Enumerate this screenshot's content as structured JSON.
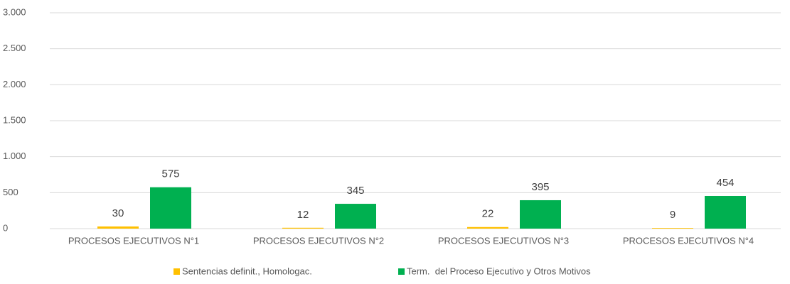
{
  "chart_data": {
    "type": "bar",
    "categories": [
      "PROCESOS EJECUTIVOS N°1",
      "PROCESOS EJECUTIVOS N°2",
      "PROCESOS EJECUTIVOS N°3",
      "PROCESOS EJECUTIVOS N°4"
    ],
    "series": [
      {
        "name": "Sentencias definit., Homologac.",
        "color": "#ffc000",
        "values": [
          30,
          12,
          22,
          9
        ]
      },
      {
        "name": "Term.  del Proceso Ejecutivo y Otros Motivos",
        "color": "#00b050",
        "values": [
          575,
          345,
          395,
          454
        ]
      }
    ],
    "ylim": [
      0,
      3000
    ],
    "yticks": [
      0,
      500,
      {
        "value": 1000,
        "label": "1.000"
      },
      {
        "value": 1500,
        "label": "1.500"
      },
      {
        "value": 2000,
        "label": "2.000"
      },
      {
        "value": 2500,
        "label": "2.500"
      },
      {
        "value": 3000,
        "label": "3.000"
      }
    ],
    "grid": true,
    "legend": "bottom"
  }
}
